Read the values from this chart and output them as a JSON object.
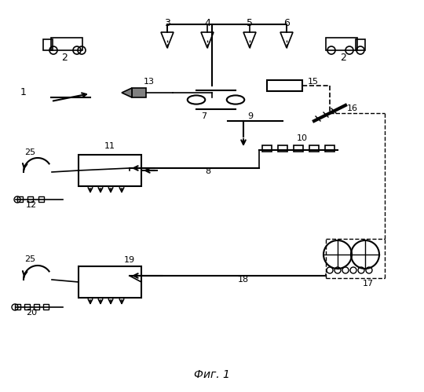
{
  "title": "Фиг. 1",
  "background_color": "#ffffff",
  "line_color": "#000000",
  "dashed_color": "#000000"
}
